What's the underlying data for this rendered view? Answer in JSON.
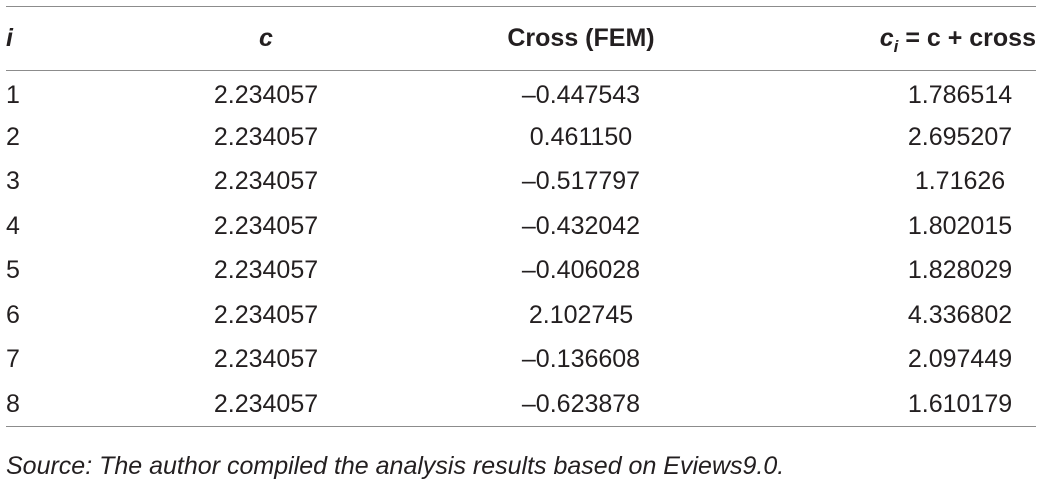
{
  "table": {
    "headers": {
      "i": "i",
      "c": "c",
      "cross": "Cross (FEM)",
      "ci_symbol": "c",
      "ci_subscript": "i",
      "ci_rest": " = c + cross"
    },
    "rows": [
      {
        "i": "1",
        "c": "2.234057",
        "cross": "–0.447543",
        "ci": "1.786514"
      },
      {
        "i": "2",
        "c": "2.234057",
        "cross": "0.461150",
        "ci": "2.695207"
      },
      {
        "i": "3",
        "c": "2.234057",
        "cross": "–0.517797",
        "ci": "1.71626"
      },
      {
        "i": "4",
        "c": "2.234057",
        "cross": "–0.432042",
        "ci": "1.802015"
      },
      {
        "i": "5",
        "c": "2.234057",
        "cross": "–0.406028",
        "ci": "1.828029"
      },
      {
        "i": "6",
        "c": "2.234057",
        "cross": "2.102745",
        "ci": "4.336802"
      },
      {
        "i": "7",
        "c": "2.234057",
        "cross": "–0.136608",
        "ci": "2.097449"
      },
      {
        "i": "8",
        "c": "2.234057",
        "cross": "–0.623878",
        "ci": "1.610179"
      }
    ]
  },
  "footnote": "Source: The author compiled the analysis results based on Eviews9.0."
}
